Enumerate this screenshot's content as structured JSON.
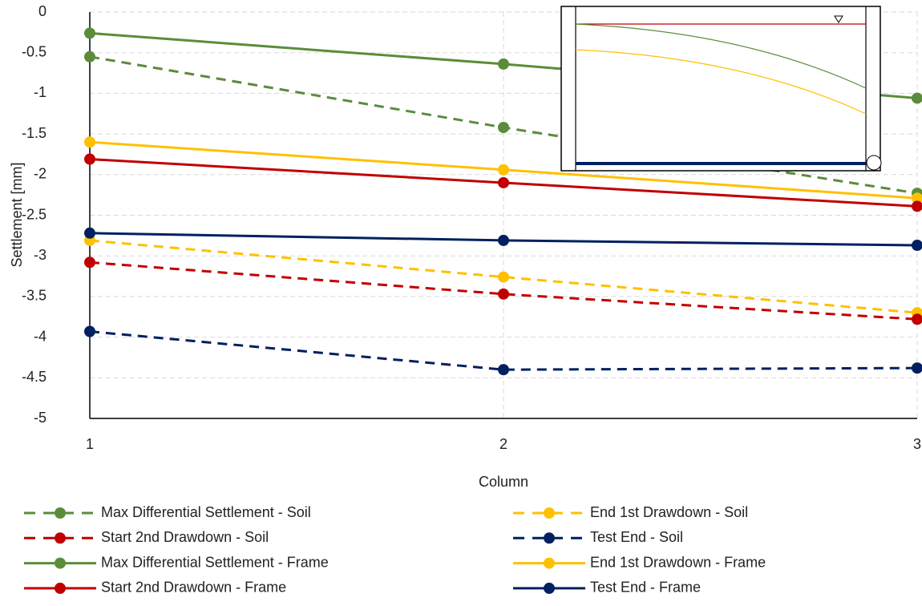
{
  "chart_data": {
    "type": "line",
    "x_label": "Column",
    "y_label": "Settlement [mm]",
    "x": [
      1,
      2,
      3
    ],
    "xlim": [
      1,
      3
    ],
    "xticks": [
      1,
      2,
      3
    ],
    "ylim": [
      -5,
      0
    ],
    "yticks": [
      0,
      -0.5,
      -1,
      -1.5,
      -2,
      -2.5,
      -3,
      -3.5,
      -4,
      -4.5,
      -5
    ],
    "grid": true,
    "legend": "bottom",
    "series": [
      {
        "name": "Max Differential Settlement - Soil",
        "color": "#5b8c3a",
        "line_style": "dashed",
        "values": [
          -0.55,
          -1.42,
          -2.23
        ]
      },
      {
        "name": "End 1st Drawdown - Soil",
        "color": "#ffc000",
        "line_style": "dashed",
        "values": [
          -2.81,
          -3.26,
          -3.7
        ]
      },
      {
        "name": "Start 2nd Drawdown - Soil",
        "color": "#c00000",
        "line_style": "dashed",
        "values": [
          -3.08,
          -3.47,
          -3.78
        ]
      },
      {
        "name": "Test End - Soil",
        "color": "#002060",
        "line_style": "dashed",
        "values": [
          -3.93,
          -4.4,
          -4.38
        ]
      },
      {
        "name": "Max Differential Settlement - Frame",
        "color": "#5b8c3a",
        "line_style": "solid",
        "values": [
          -0.26,
          -0.64,
          -1.06
        ]
      },
      {
        "name": "End 1st Drawdown - Frame",
        "color": "#ffc000",
        "line_style": "solid",
        "values": [
          -1.6,
          -1.94,
          -2.29
        ]
      },
      {
        "name": "Start 2nd Drawdown - Frame",
        "color": "#c00000",
        "line_style": "solid",
        "values": [
          -1.81,
          -2.1,
          -2.39
        ]
      },
      {
        "name": "Test End - Frame",
        "color": "#002060",
        "line_style": "solid",
        "values": [
          -2.72,
          -2.81,
          -2.87
        ]
      }
    ]
  }
}
